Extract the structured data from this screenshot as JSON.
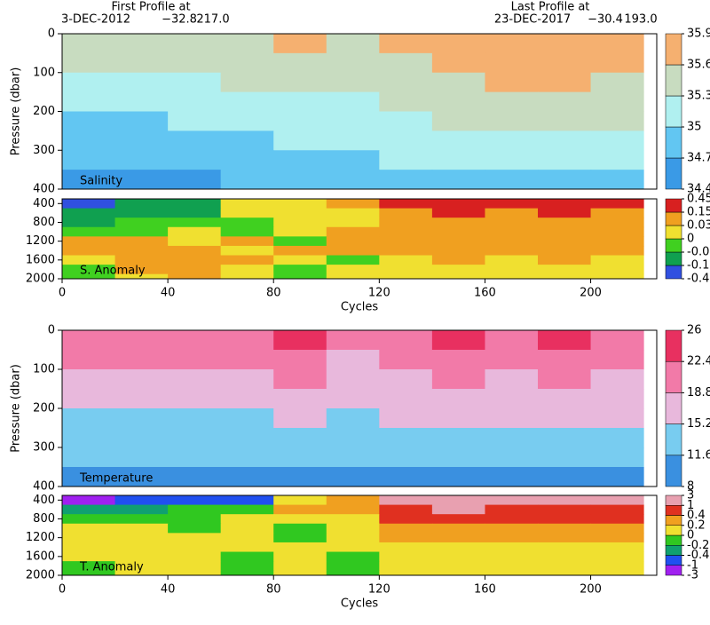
{
  "header": {
    "first_title": "First Profile at",
    "first_date": "3-DEC-2012",
    "first_lat": "−32.8",
    "first_lon": "217.0",
    "last_title": "Last Profile at",
    "last_date": "23-DEC-2017",
    "last_lat": "−30.4",
    "last_lon": "193.0"
  },
  "chart_data": [
    {
      "type": "heatmap",
      "annotation": "Salinity",
      "ylabel": "Pressure (dbar)",
      "y_reversed": true,
      "xlim": [
        0,
        225
      ],
      "ylim": [
        0,
        400
      ],
      "yticks": [
        0,
        100,
        200,
        300,
        400
      ],
      "x": [
        10,
        30,
        50,
        70,
        90,
        110,
        130,
        150,
        170,
        190,
        210
      ],
      "y": [
        25,
        75,
        125,
        175,
        225,
        275,
        325,
        375
      ],
      "z": [
        [
          35.4,
          35.4,
          35.4,
          35.5,
          35.6,
          35.5,
          35.6,
          35.7,
          35.7,
          35.8,
          35.8
        ],
        [
          35.3,
          35.3,
          35.4,
          35.4,
          35.5,
          35.4,
          35.5,
          35.6,
          35.7,
          35.7,
          35.7
        ],
        [
          35.1,
          35.2,
          35.2,
          35.3,
          35.3,
          35.3,
          35.4,
          35.5,
          35.6,
          35.6,
          35.5
        ],
        [
          35.0,
          35.0,
          35.1,
          35.1,
          35.2,
          35.2,
          35.3,
          35.4,
          35.5,
          35.4,
          35.4
        ],
        [
          34.9,
          34.9,
          35.0,
          35.0,
          35.1,
          35.1,
          35.2,
          35.3,
          35.3,
          35.3,
          35.3
        ],
        [
          34.8,
          34.8,
          34.9,
          34.9,
          35.0,
          35.0,
          35.1,
          35.2,
          35.2,
          35.2,
          35.1
        ],
        [
          34.7,
          34.7,
          34.8,
          34.8,
          34.9,
          34.9,
          35.0,
          35.0,
          35.1,
          35.0,
          35.0
        ],
        [
          34.6,
          34.6,
          34.6,
          34.7,
          34.8,
          34.7,
          34.8,
          34.9,
          34.9,
          34.9,
          34.8
        ]
      ],
      "levels": [
        34.4,
        34.7,
        35,
        35.3,
        35.6,
        35.9
      ],
      "colors": [
        "#3a9ae6",
        "#62c6f2",
        "#b0f0f0",
        "#c8dcc0",
        "#f5b070"
      ]
    },
    {
      "type": "heatmap",
      "annotation": "S. Anomaly",
      "xlabel": "Cycles",
      "y_reversed": true,
      "xlim": [
        0,
        225
      ],
      "xticks": [
        0,
        40,
        80,
        120,
        160,
        200
      ],
      "ylim": [
        300,
        2000
      ],
      "yticks": [
        400,
        800,
        1200,
        1600,
        2000
      ],
      "x": [
        10,
        30,
        50,
        70,
        90,
        110,
        130,
        150,
        170,
        190,
        210
      ],
      "y": [
        400,
        600,
        800,
        1000,
        1200,
        1400,
        1600,
        1800,
        2000
      ],
      "z": [
        [
          -0.2,
          -0.1,
          -0.1,
          0,
          0.02,
          0.05,
          0.2,
          0.3,
          0.2,
          0.3,
          0.2
        ],
        [
          -0.1,
          -0.05,
          -0.05,
          0,
          0.01,
          0.02,
          0.1,
          0.2,
          0.1,
          0.2,
          0.1
        ],
        [
          -0.05,
          -0.02,
          -0.02,
          -0.01,
          0,
          0.02,
          0.05,
          0.1,
          0.05,
          0.1,
          0.05
        ],
        [
          -0.02,
          -0.02,
          0.01,
          -0.01,
          0.02,
          0.04,
          0.05,
          0.05,
          0.04,
          0.05,
          0.04
        ],
        [
          0.04,
          0.05,
          0.02,
          0.05,
          -0.01,
          0.04,
          0.04,
          0.05,
          0.04,
          0.04,
          0.05
        ],
        [
          0.05,
          0.04,
          0.06,
          0.02,
          0.05,
          0.05,
          0.04,
          0.05,
          0.05,
          0.05,
          0.04
        ],
        [
          0.02,
          0.05,
          0.04,
          0.04,
          0.02,
          -0.01,
          0.02,
          0.04,
          0.02,
          0.04,
          0.02
        ],
        [
          -0.01,
          0.04,
          0.05,
          0.02,
          -0.01,
          0.01,
          0.02,
          0.01,
          0.02,
          0.01,
          0.02
        ],
        [
          -0.02,
          0.02,
          0.04,
          0.01,
          -0.02,
          0.01,
          0.01,
          0.02,
          0.01,
          0.02,
          0.01
        ]
      ],
      "levels": [
        -0.45,
        -0.15,
        -0.03,
        0,
        0.03,
        0.15,
        0.45
      ],
      "colors": [
        "#3050e0",
        "#10a050",
        "#40d020",
        "#f0e030",
        "#f0a020",
        "#d82020"
      ]
    },
    {
      "type": "heatmap",
      "annotation": "Temperature",
      "ylabel": "Pressure (dbar)",
      "y_reversed": true,
      "xlim": [
        0,
        225
      ],
      "ylim": [
        0,
        400
      ],
      "yticks": [
        0,
        100,
        200,
        300,
        400
      ],
      "x": [
        10,
        30,
        50,
        70,
        90,
        110,
        130,
        150,
        170,
        190,
        210
      ],
      "y": [
        25,
        75,
        125,
        175,
        225,
        275,
        325,
        375
      ],
      "z": [
        [
          21,
          21,
          22,
          21,
          23,
          20,
          21,
          23,
          22,
          23,
          22
        ],
        [
          19,
          19,
          19,
          19,
          21,
          18,
          19,
          21,
          20,
          20,
          20
        ],
        [
          18,
          17,
          18,
          17,
          19,
          17,
          18,
          19,
          18,
          19,
          18
        ],
        [
          16,
          16,
          16,
          16,
          17,
          16,
          17,
          17,
          17,
          17,
          17
        ],
        [
          15,
          15,
          15,
          15,
          16,
          15,
          16,
          16,
          16,
          16,
          16
        ],
        [
          14,
          13,
          14,
          13,
          15,
          14,
          14,
          15,
          15,
          15,
          14
        ],
        [
          12,
          12,
          12,
          12,
          13,
          12,
          13,
          13,
          13,
          13,
          13
        ],
        [
          10,
          10,
          10,
          10,
          11,
          10,
          11,
          11,
          11,
          11,
          11
        ]
      ],
      "levels": [
        8,
        11.6,
        15.2,
        18.8,
        22.4,
        26
      ],
      "colors": [
        "#3a90e0",
        "#78ccf0",
        "#e8b8dc",
        "#f27aa8",
        "#e83060"
      ]
    },
    {
      "type": "heatmap",
      "annotation": "T. Anomaly",
      "xlabel": "Cycles",
      "y_reversed": true,
      "xlim": [
        0,
        225
      ],
      "xticks": [
        0,
        40,
        80,
        120,
        160,
        200
      ],
      "ylim": [
        300,
        2000
      ],
      "yticks": [
        400,
        800,
        1200,
        1600,
        2000
      ],
      "x": [
        10,
        30,
        50,
        70,
        90,
        110,
        130,
        150,
        170,
        190,
        210
      ],
      "y": [
        400,
        600,
        800,
        1000,
        1200,
        1400,
        1600,
        1800,
        2000
      ],
      "z": [
        [
          -1.5,
          -1,
          -1,
          -0.5,
          0.1,
          0.3,
          1.5,
          2,
          1,
          2,
          1
        ],
        [
          -0.3,
          -0.3,
          -0.1,
          -0.2,
          0.3,
          0.2,
          0.8,
          1,
          0.5,
          0.8,
          0.5
        ],
        [
          -0.1,
          -0.1,
          -0.1,
          0.1,
          0.1,
          0.1,
          0.5,
          0.6,
          0.4,
          0.5,
          0.4
        ],
        [
          0.1,
          0.05,
          -0.1,
          0.15,
          -0.1,
          0.1,
          0.3,
          0.3,
          0.2,
          0.3,
          0.2
        ],
        [
          0.15,
          0.1,
          0.05,
          0.15,
          -0.05,
          0.1,
          0.2,
          0.25,
          0.2,
          0.2,
          0.2
        ],
        [
          0.1,
          0.15,
          0.1,
          0.05,
          0.1,
          0.05,
          0.1,
          0.15,
          0.1,
          0.1,
          0.1
        ],
        [
          0.05,
          0.1,
          0.1,
          -0.05,
          0.1,
          -0.05,
          0.1,
          0.1,
          0.05,
          0.1,
          0.05
        ],
        [
          -0.1,
          0.1,
          0.1,
          -0.1,
          0.05,
          -0.05,
          0.05,
          0.05,
          0.05,
          0.05,
          0.05
        ],
        [
          -0.1,
          0.05,
          0.1,
          -0.1,
          0.05,
          -0.1,
          0.05,
          0.05,
          0.05,
          0.05,
          0.05
        ]
      ],
      "levels": [
        -3,
        -1,
        -0.4,
        -0.2,
        0,
        0.2,
        0.4,
        1,
        3
      ],
      "colors": [
        "#a020f0",
        "#2050f0",
        "#10a070",
        "#30c820",
        "#f0e030",
        "#f0a020",
        "#e03020",
        "#e8a0b0"
      ]
    }
  ]
}
